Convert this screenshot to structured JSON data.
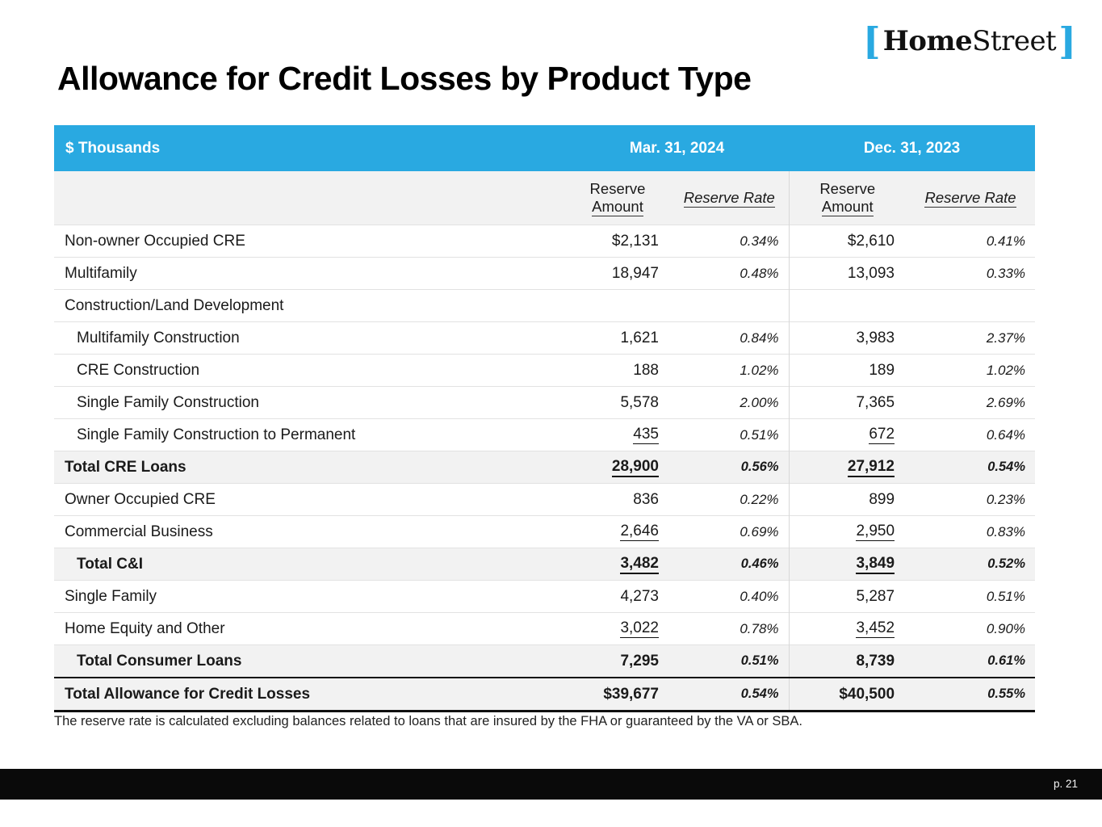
{
  "logo": {
    "bracket_left": "[",
    "word_bold": "Home",
    "word_regular": "Street",
    "bracket_right": "]"
  },
  "title": "Allowance for Credit Losses by Product Type",
  "colors": {
    "brand_blue": "#29A9E1",
    "shaded_row": "#F2F2F2",
    "footer_black": "#0A0A0A"
  },
  "table": {
    "unit_label": "$ Thousands",
    "period1": "Mar. 31, 2024",
    "period2": "Dec. 31, 2023",
    "col_amount_line1": "Reserve",
    "col_amount_line2": "Amount",
    "col_rate": "Reserve Rate",
    "rows": [
      {
        "label": "Non-owner Occupied CRE",
        "indent": false,
        "bold": false,
        "shaded": false,
        "grand": false,
        "underline": false,
        "a1": "$2,131",
        "r1": "0.34%",
        "a2": "$2,610",
        "r2": "0.41%"
      },
      {
        "label": "Multifamily",
        "indent": false,
        "bold": false,
        "shaded": false,
        "grand": false,
        "underline": false,
        "a1": "18,947",
        "r1": "0.48%",
        "a2": "13,093",
        "r2": "0.33%"
      },
      {
        "label": "Construction/Land Development",
        "indent": false,
        "bold": false,
        "shaded": false,
        "grand": false,
        "underline": false,
        "a1": "",
        "r1": "",
        "a2": "",
        "r2": ""
      },
      {
        "label": "Multifamily Construction",
        "indent": true,
        "bold": false,
        "shaded": false,
        "grand": false,
        "underline": false,
        "a1": "1,621",
        "r1": "0.84%",
        "a2": "3,983",
        "r2": "2.37%"
      },
      {
        "label": "CRE Construction",
        "indent": true,
        "bold": false,
        "shaded": false,
        "grand": false,
        "underline": false,
        "a1": "188",
        "r1": "1.02%",
        "a2": "189",
        "r2": "1.02%"
      },
      {
        "label": "Single Family Construction",
        "indent": true,
        "bold": false,
        "shaded": false,
        "grand": false,
        "underline": false,
        "a1": "5,578",
        "r1": "2.00%",
        "a2": "7,365",
        "r2": "2.69%"
      },
      {
        "label": "Single Family Construction to Permanent",
        "indent": true,
        "bold": false,
        "shaded": false,
        "grand": false,
        "underline": true,
        "a1": "435",
        "r1": "0.51%",
        "a2": "672",
        "r2": "0.64%"
      },
      {
        "label": "Total CRE Loans",
        "indent": false,
        "bold": true,
        "shaded": true,
        "grand": false,
        "underline": true,
        "a1": "28,900",
        "r1": "0.56%",
        "a2": "27,912",
        "r2": "0.54%"
      },
      {
        "label": "Owner Occupied CRE",
        "indent": false,
        "bold": false,
        "shaded": false,
        "grand": false,
        "underline": false,
        "a1": "836",
        "r1": "0.22%",
        "a2": "899",
        "r2": "0.23%"
      },
      {
        "label": "Commercial Business",
        "indent": false,
        "bold": false,
        "shaded": false,
        "grand": false,
        "underline": true,
        "a1": "2,646",
        "r1": "0.69%",
        "a2": "2,950",
        "r2": "0.83%"
      },
      {
        "label": "Total C&I",
        "indent": true,
        "bold": true,
        "shaded": true,
        "grand": false,
        "underline": true,
        "a1": "3,482",
        "r1": "0.46%",
        "a2": "3,849",
        "r2": "0.52%"
      },
      {
        "label": "Single Family",
        "indent": false,
        "bold": false,
        "shaded": false,
        "grand": false,
        "underline": false,
        "a1": "4,273",
        "r1": "0.40%",
        "a2": "5,287",
        "r2": "0.51%"
      },
      {
        "label": "Home Equity and Other",
        "indent": false,
        "bold": false,
        "shaded": false,
        "grand": false,
        "underline": true,
        "a1": "3,022",
        "r1": "0.78%",
        "a2": "3,452",
        "r2": "0.90%"
      },
      {
        "label": "Total Consumer Loans",
        "indent": true,
        "bold": true,
        "shaded": true,
        "grand": false,
        "underline": false,
        "a1": "7,295",
        "r1": "0.51%",
        "a2": "8,739",
        "r2": "0.61%"
      },
      {
        "label": "Total Allowance for Credit Losses",
        "indent": false,
        "bold": true,
        "shaded": true,
        "grand": true,
        "underline": false,
        "a1": "$39,677",
        "r1": "0.54%",
        "a2": "$40,500",
        "r2": "0.55%"
      }
    ]
  },
  "footnote": "The reserve rate is calculated excluding balances related to loans that are insured by the FHA or guaranteed by the VA or SBA.",
  "footer": {
    "page_label": "p. 21"
  }
}
